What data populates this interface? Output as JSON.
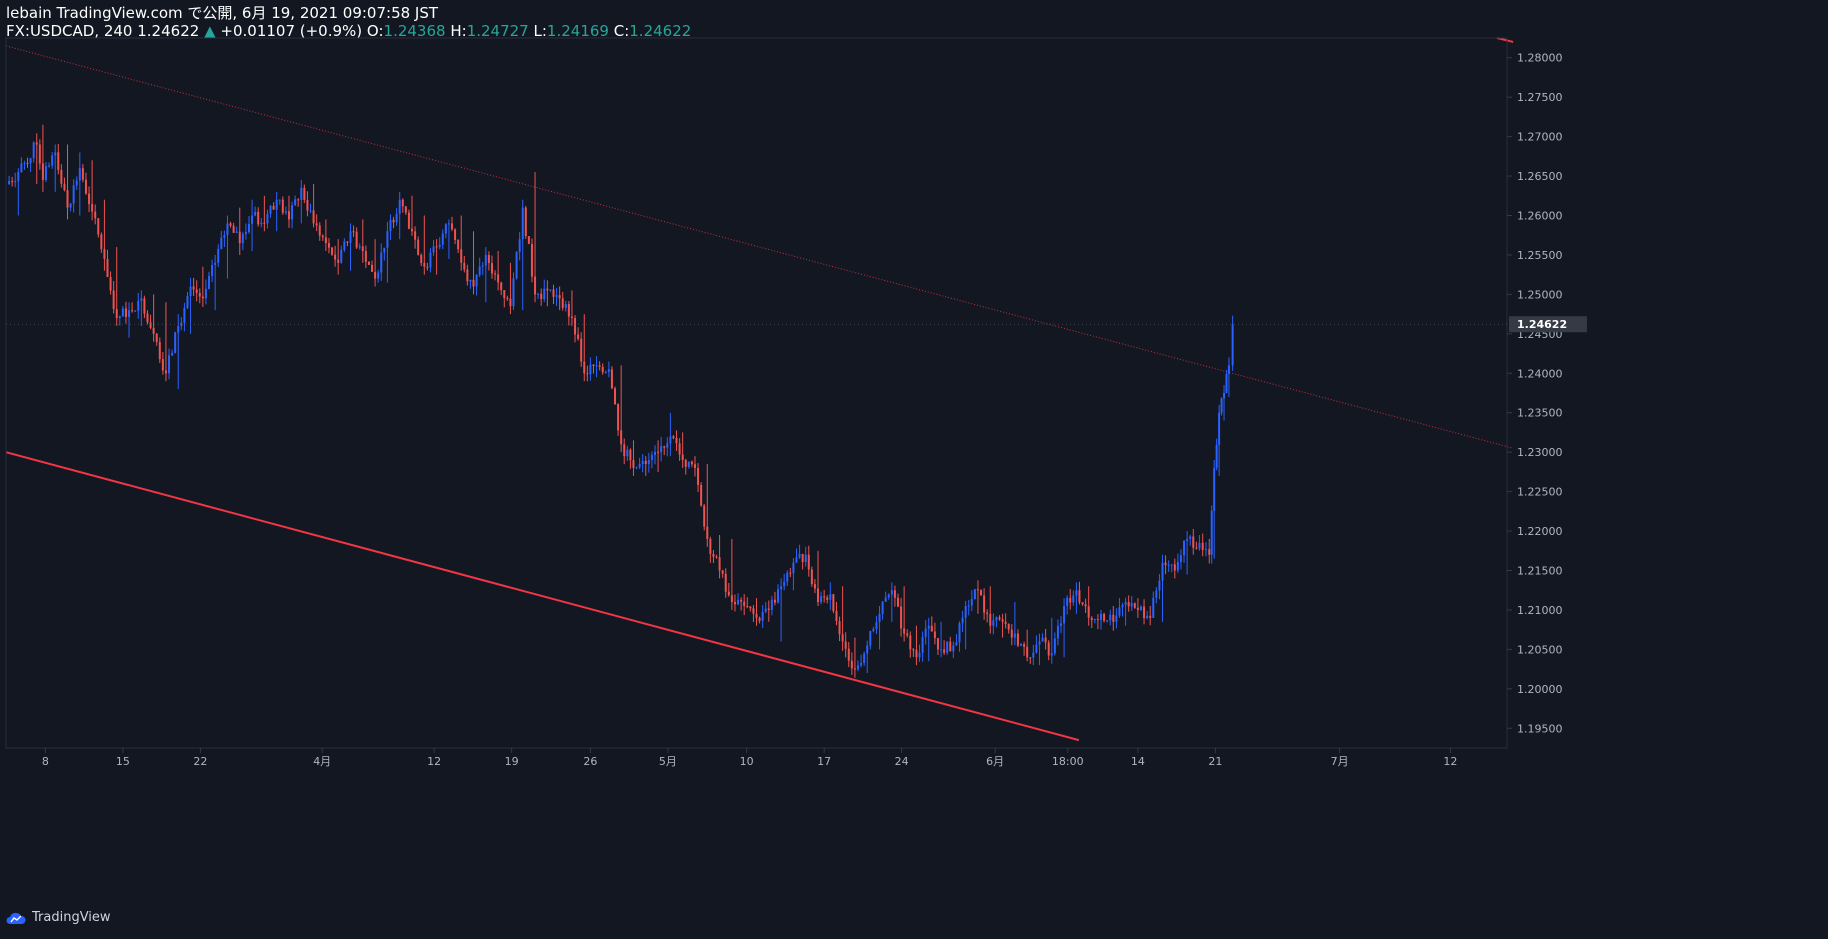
{
  "header": {
    "line1": "lebain TradingView.com で公開, 6月 19, 2021 09:07:58 JST",
    "symbol": "FX:USDCAD, 240",
    "last_price": "1.24622",
    "change_arrow": "▲",
    "change": "+0.01107 (+0.9%)",
    "o_label": "O:",
    "o_value": "1.24368",
    "h_label": "H:",
    "h_value": "1.24727",
    "l_label": "L:",
    "l_value": "1.24169",
    "c_label": "C:",
    "c_value": "1.24622"
  },
  "footer": {
    "brand": "TradingView"
  },
  "colors": {
    "background": "#131722",
    "up": "#2962ff",
    "down": "#ef5350",
    "grid_text": "#b2b5be",
    "axis_line": "#363a45",
    "price_label_bg": "#363a45",
    "trendline": "#f23645"
  },
  "chart_data": {
    "type": "candlestick",
    "title": "FX:USDCAD, 240",
    "y_range": [
      1.1925,
      1.2825
    ],
    "y_ticks": [
      "1.28000",
      "1.27500",
      "1.27000",
      "1.26500",
      "1.26000",
      "1.25500",
      "1.25000",
      "1.24500",
      "1.24000",
      "1.23500",
      "1.23000",
      "1.22500",
      "1.22000",
      "1.21500",
      "1.21000",
      "1.20500",
      "1.20000",
      "1.19500"
    ],
    "last_price_label": "1.24622",
    "x_range": [
      0,
      122
    ],
    "x_ticks": [
      {
        "t": 3.2,
        "label": "8"
      },
      {
        "t": 9.5,
        "label": "15"
      },
      {
        "t": 15.8,
        "label": "22"
      },
      {
        "t": 25.7,
        "label": "4月"
      },
      {
        "t": 34.8,
        "label": "12"
      },
      {
        "t": 41.1,
        "label": "19"
      },
      {
        "t": 47.5,
        "label": "26"
      },
      {
        "t": 53.8,
        "label": "5月"
      },
      {
        "t": 60.2,
        "label": "10"
      },
      {
        "t": 66.5,
        "label": "17"
      },
      {
        "t": 72.8,
        "label": "24"
      },
      {
        "t": 80.4,
        "label": "6月"
      },
      {
        "t": 86.3,
        "label": "18:00"
      },
      {
        "t": 92.0,
        "label": "14"
      },
      {
        "t": 98.3,
        "label": "21"
      },
      {
        "t": 108.4,
        "label": "7月"
      },
      {
        "t": 117.4,
        "label": "12"
      }
    ],
    "ohlc_anchors": [
      [
        0,
        1.261,
        1.2655,
        1.2595,
        1.264
      ],
      [
        1,
        1.264,
        1.266,
        1.26,
        1.2655
      ],
      [
        2.5,
        1.2655,
        1.2702,
        1.264,
        1.269
      ],
      [
        3,
        1.269,
        1.2715,
        1.263,
        1.2645
      ],
      [
        4,
        1.2645,
        1.269,
        1.263,
        1.268
      ],
      [
        5,
        1.268,
        1.269,
        1.2595,
        1.261
      ],
      [
        6,
        1.261,
        1.268,
        1.26,
        1.266
      ],
      [
        7,
        1.266,
        1.267,
        1.26,
        1.2605
      ],
      [
        8,
        1.2605,
        1.262,
        1.253,
        1.2545
      ],
      [
        9,
        1.2545,
        1.256,
        1.246,
        1.247
      ],
      [
        10,
        1.247,
        1.249,
        1.2445,
        1.248
      ],
      [
        11,
        1.248,
        1.2505,
        1.246,
        1.2495
      ],
      [
        12,
        1.2495,
        1.25,
        1.244,
        1.245
      ],
      [
        13,
        1.245,
        1.249,
        1.239,
        1.24
      ],
      [
        14,
        1.24,
        1.2475,
        1.238,
        1.246
      ],
      [
        15,
        1.246,
        1.252,
        1.245,
        1.251
      ],
      [
        16,
        1.251,
        1.2535,
        1.249,
        1.2495
      ],
      [
        17,
        1.2495,
        1.255,
        1.248,
        1.254
      ],
      [
        18,
        1.254,
        1.26,
        1.252,
        1.259
      ],
      [
        19,
        1.259,
        1.261,
        1.255,
        1.2565
      ],
      [
        20,
        1.2565,
        1.262,
        1.2555,
        1.26
      ],
      [
        21,
        1.26,
        1.2625,
        1.258,
        1.259
      ],
      [
        22,
        1.259,
        1.263,
        1.258,
        1.262
      ],
      [
        23,
        1.262,
        1.2625,
        1.2585,
        1.2595
      ],
      [
        24,
        1.2595,
        1.2645,
        1.259,
        1.2635
      ],
      [
        25,
        1.2635,
        1.264,
        1.2585,
        1.259
      ],
      [
        26,
        1.259,
        1.2595,
        1.2555,
        1.2565
      ],
      [
        27,
        1.2565,
        1.257,
        1.2525,
        1.254
      ],
      [
        28,
        1.254,
        1.259,
        1.253,
        1.258
      ],
      [
        29,
        1.258,
        1.2595,
        1.254,
        1.2555
      ],
      [
        30,
        1.2555,
        1.257,
        1.251,
        1.252
      ],
      [
        31,
        1.252,
        1.259,
        1.2515,
        1.258
      ],
      [
        32,
        1.258,
        1.263,
        1.257,
        1.262
      ],
      [
        33,
        1.262,
        1.2625,
        1.2575,
        1.258
      ],
      [
        34,
        1.258,
        1.26,
        1.2525,
        1.2535
      ],
      [
        35,
        1.2535,
        1.257,
        1.2525,
        1.256
      ],
      [
        36,
        1.256,
        1.2595,
        1.2545,
        1.259
      ],
      [
        37,
        1.259,
        1.26,
        1.253,
        1.254
      ],
      [
        38,
        1.254,
        1.258,
        1.25,
        1.251
      ],
      [
        39,
        1.251,
        1.256,
        1.249,
        1.255
      ],
      [
        40,
        1.255,
        1.2555,
        1.2505,
        1.2515
      ],
      [
        41,
        1.2515,
        1.254,
        1.2475,
        1.2485
      ],
      [
        42,
        1.2485,
        1.262,
        1.248,
        1.261
      ],
      [
        43,
        1.261,
        1.2655,
        1.249,
        1.25
      ],
      [
        44,
        1.25,
        1.2515,
        1.2485,
        1.2505
      ],
      [
        45,
        1.2505,
        1.251,
        1.248,
        1.2495
      ],
      [
        46,
        1.2495,
        1.2505,
        1.246,
        1.247
      ],
      [
        47,
        1.247,
        1.2475,
        1.239,
        1.24
      ],
      [
        48,
        1.24,
        1.242,
        1.2395,
        1.241
      ],
      [
        49,
        1.241,
        1.2415,
        1.2395,
        1.2405
      ],
      [
        50,
        1.2405,
        1.241,
        1.23,
        1.231
      ],
      [
        51,
        1.231,
        1.2315,
        1.227,
        1.228
      ],
      [
        52,
        1.228,
        1.2295,
        1.227,
        1.2285
      ],
      [
        53,
        1.2285,
        1.2315,
        1.2275,
        1.23
      ],
      [
        54,
        1.23,
        1.235,
        1.2295,
        1.232
      ],
      [
        55,
        1.232,
        1.2325,
        1.228,
        1.229
      ],
      [
        56,
        1.229,
        1.2295,
        1.227,
        1.228
      ],
      [
        57,
        1.228,
        1.2285,
        1.218,
        1.219
      ],
      [
        58,
        1.219,
        1.2195,
        1.214,
        1.215
      ],
      [
        59,
        1.215,
        1.219,
        1.21,
        1.211
      ],
      [
        60,
        1.211,
        1.212,
        1.2095,
        1.2105
      ],
      [
        61,
        1.2105,
        1.2115,
        1.208,
        1.209
      ],
      [
        62,
        1.209,
        1.211,
        1.2085,
        1.21
      ],
      [
        63,
        1.21,
        1.214,
        1.206,
        1.213
      ],
      [
        64,
        1.213,
        1.2165,
        1.2125,
        1.216
      ],
      [
        65,
        1.216,
        1.218,
        1.2155,
        1.217
      ],
      [
        66,
        1.217,
        1.2175,
        1.2105,
        1.211
      ],
      [
        67,
        1.211,
        1.2135,
        1.21,
        1.212
      ],
      [
        68,
        1.212,
        1.213,
        1.2055,
        1.206
      ],
      [
        69,
        1.206,
        1.2065,
        1.202,
        1.2025
      ],
      [
        70,
        1.2025,
        1.206,
        1.202,
        1.2055
      ],
      [
        71,
        1.2055,
        1.2105,
        1.205,
        1.2095
      ],
      [
        72,
        1.2095,
        1.2135,
        1.2085,
        1.2125
      ],
      [
        73,
        1.2125,
        1.213,
        1.206,
        1.207
      ],
      [
        74,
        1.207,
        1.208,
        1.203,
        1.204
      ],
      [
        75,
        1.204,
        1.209,
        1.2035,
        1.208
      ],
      [
        76,
        1.208,
        1.2085,
        1.204,
        1.205
      ],
      [
        77,
        1.205,
        1.206,
        1.204,
        1.2055
      ],
      [
        78,
        1.2055,
        1.211,
        1.205,
        1.2105
      ],
      [
        79,
        1.2105,
        1.213,
        1.2095,
        1.2125
      ],
      [
        80,
        1.2125,
        1.213,
        1.207,
        1.208
      ],
      [
        81,
        1.208,
        1.209,
        1.2065,
        1.2085
      ],
      [
        82,
        1.2085,
        1.211,
        1.206,
        1.207
      ],
      [
        83,
        1.207,
        1.2075,
        1.2035,
        1.204
      ],
      [
        84,
        1.204,
        1.207,
        1.203,
        1.206
      ],
      [
        85,
        1.206,
        1.209,
        1.2035,
        1.2045
      ],
      [
        86,
        1.2045,
        1.2115,
        1.204,
        1.2105
      ],
      [
        87,
        1.2105,
        1.213,
        1.2095,
        1.2125
      ],
      [
        88,
        1.2125,
        1.213,
        1.208,
        1.209
      ],
      [
        89,
        1.209,
        1.21,
        1.2075,
        1.2095
      ],
      [
        90,
        1.2095,
        1.2105,
        1.208,
        1.2085
      ],
      [
        91,
        1.2085,
        1.2115,
        1.208,
        1.211
      ],
      [
        92,
        1.211,
        1.2115,
        1.209,
        1.21
      ],
      [
        93,
        1.21,
        1.2105,
        1.2085,
        1.209
      ],
      [
        94,
        1.209,
        1.217,
        1.2085,
        1.216
      ],
      [
        95,
        1.216,
        1.2165,
        1.214,
        1.215
      ],
      [
        96,
        1.215,
        1.22,
        1.2145,
        1.219
      ],
      [
        97,
        1.219,
        1.2195,
        1.2175,
        1.2185
      ],
      [
        97.8,
        1.2185,
        1.219,
        1.216,
        1.217
      ],
      [
        98.2,
        1.217,
        1.229,
        1.2165,
        1.228
      ],
      [
        98.6,
        1.228,
        1.236,
        1.227,
        1.235
      ],
      [
        99,
        1.235,
        1.2385,
        1.234,
        1.2375
      ],
      [
        99.4,
        1.2375,
        1.242,
        1.237,
        1.241
      ],
      [
        99.7,
        1.241,
        1.2473,
        1.2405,
        1.2462
      ]
    ],
    "trendlines": [
      {
        "name": "upper-channel",
        "style": "dotted",
        "points": [
          [
            0.0,
            1.2815
          ],
          [
            122.5,
            1.2305
          ]
        ]
      },
      {
        "name": "lower-channel",
        "style": "solid",
        "points": [
          [
            0.0,
            1.23
          ],
          [
            87.2,
            1.1935
          ]
        ]
      },
      {
        "name": "top-right-segment",
        "style": "solid",
        "points": [
          [
            121.2,
            1.2825
          ],
          [
            122.5,
            1.282
          ]
        ]
      }
    ]
  }
}
